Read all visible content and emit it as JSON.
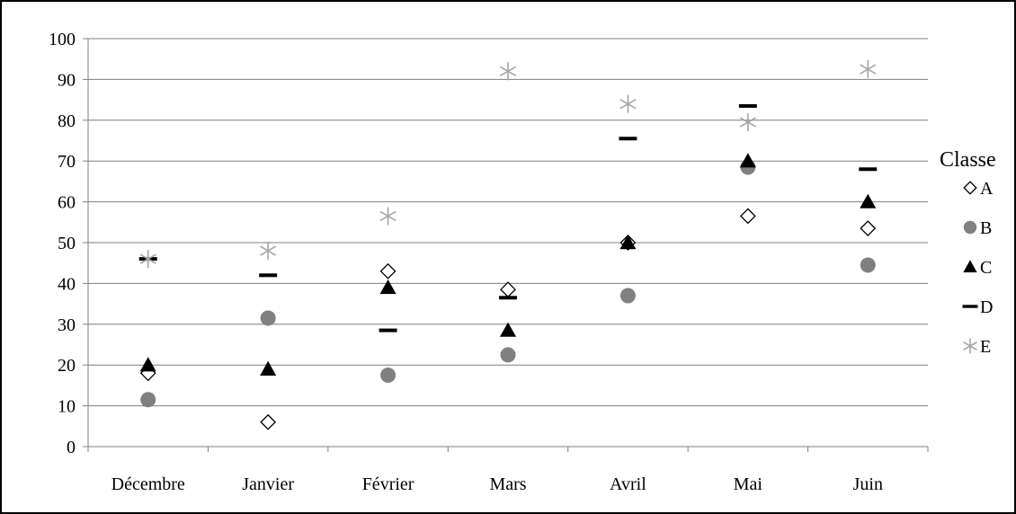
{
  "chart_data": {
    "type": "scatter",
    "categories": [
      "Décembre",
      "Janvier",
      "Février",
      "Mars",
      "Avril",
      "Mai",
      "Juin"
    ],
    "ylim": [
      0,
      100
    ],
    "yticks": [
      0,
      10,
      20,
      30,
      40,
      50,
      60,
      70,
      80,
      90,
      100
    ],
    "grid": "horizontal",
    "legend": {
      "title": "Classe",
      "placement": "right"
    },
    "series": [
      {
        "name": "A",
        "marker": "diamond-open",
        "color": "#000000",
        "values": [
          18,
          6,
          43,
          38.5,
          50,
          56.5,
          53.5
        ]
      },
      {
        "name": "B",
        "marker": "circle-filled",
        "color": "#808080",
        "values": [
          11.5,
          31.5,
          17.5,
          22.5,
          37,
          68.5,
          44.5
        ]
      },
      {
        "name": "C",
        "marker": "triangle-filled",
        "color": "#000000",
        "values": [
          20,
          19,
          39,
          28.5,
          50,
          70,
          60
        ]
      },
      {
        "name": "D",
        "marker": "dash",
        "color": "#000000",
        "values": [
          46,
          42,
          28.5,
          36.5,
          75.5,
          83.5,
          68
        ]
      },
      {
        "name": "E",
        "marker": "asterisk",
        "color": "#a6a6a6",
        "values": [
          46,
          48,
          56.5,
          92,
          84,
          79.5,
          92.5
        ]
      }
    ]
  }
}
